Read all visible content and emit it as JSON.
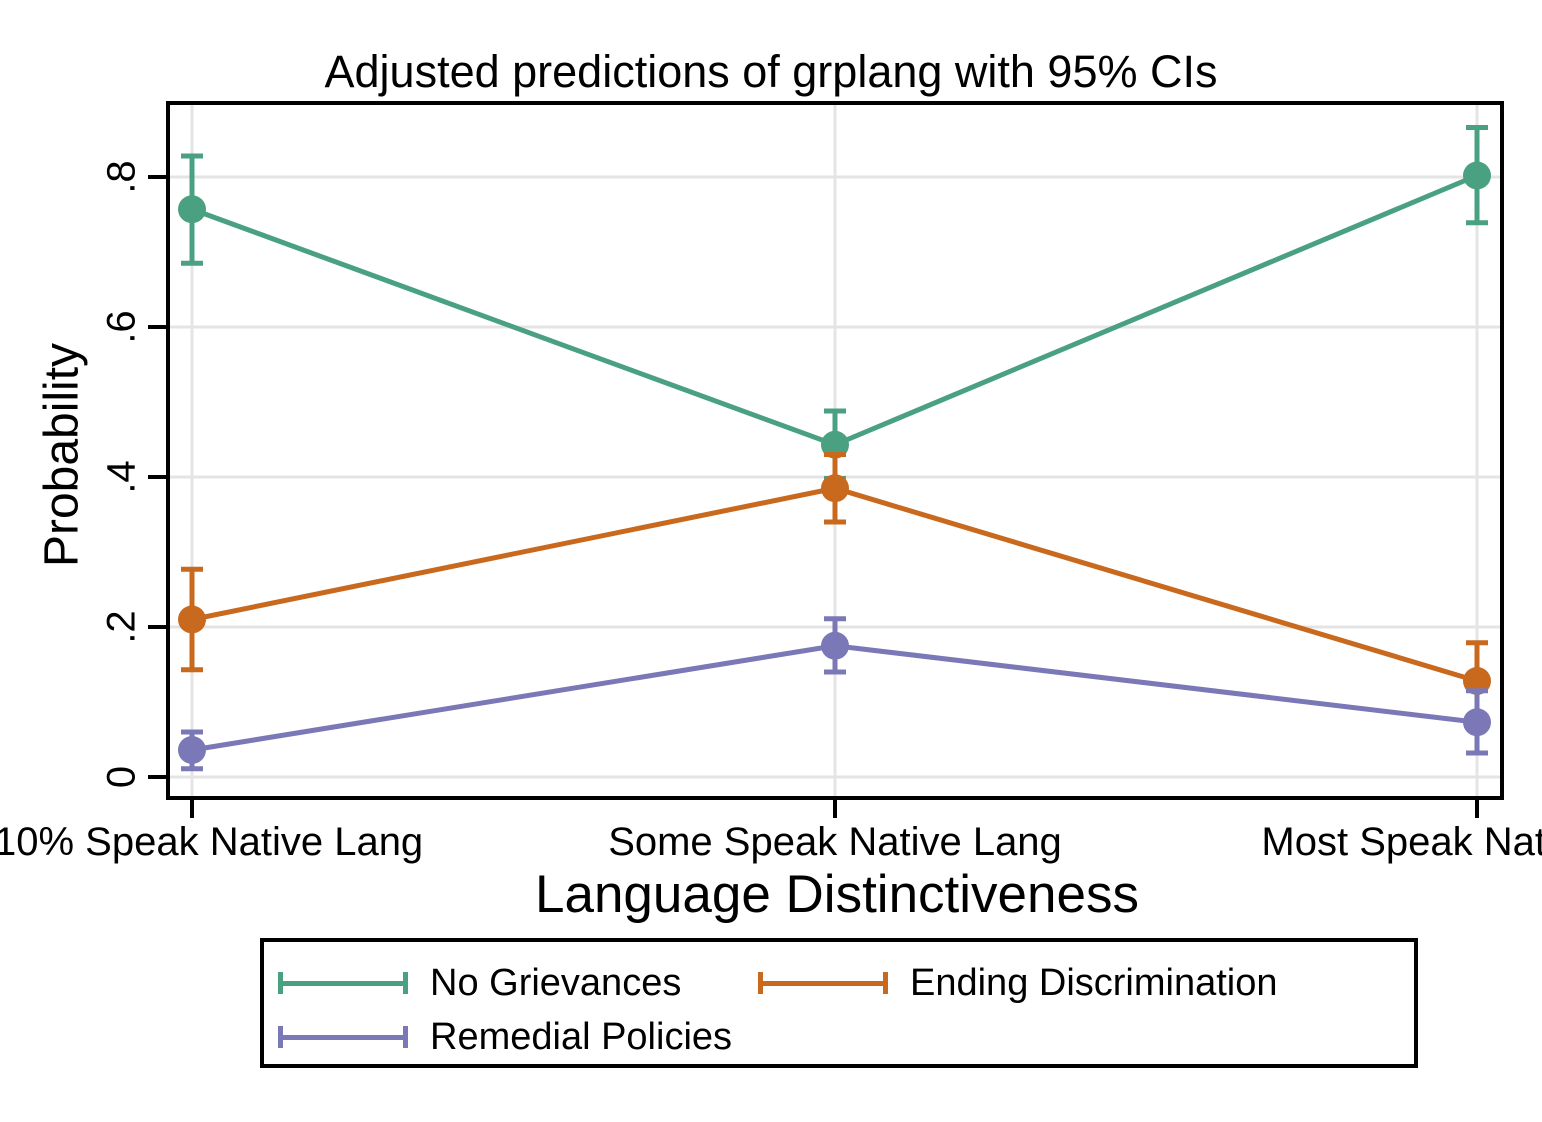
{
  "chart_data": {
    "type": "line",
    "title": "Adjusted predictions of grplang with 95% CIs",
    "xlabel": "Language Distinctiveness",
    "ylabel": "Probability",
    "ylim": [
      0,
      0.9
    ],
    "grid": true,
    "error_bars": "95% CIs",
    "legend_position": "bottom",
    "yticks": {
      "values": [
        0,
        0.2,
        0.4,
        0.6,
        0.8
      ],
      "labels": [
        "0",
        ".2",
        ".4",
        ".6",
        ".8"
      ]
    },
    "categories": [
      "10% Speak Native Lang",
      "Some Speak Native Lang",
      "Most Speak Nat"
    ],
    "series": [
      {
        "name": "No Grievances",
        "color": "#4AA181",
        "values": [
          0.757,
          0.443,
          0.802
        ],
        "ci_low": [
          0.685,
          0.398,
          0.739
        ],
        "ci_high": [
          0.828,
          0.488,
          0.866
        ]
      },
      {
        "name": "Ending Discrimination",
        "color": "#C9691E",
        "values": [
          0.21,
          0.385,
          0.128
        ],
        "ci_low": [
          0.143,
          0.34,
          0.078
        ],
        "ci_high": [
          0.277,
          0.43,
          0.179
        ]
      },
      {
        "name": "Remedial Policies",
        "color": "#7A78B6",
        "values": [
          0.036,
          0.175,
          0.073
        ],
        "ci_low": [
          0.011,
          0.14,
          0.032
        ],
        "ci_high": [
          0.06,
          0.211,
          0.115
        ]
      }
    ]
  },
  "legend": {
    "items": [
      {
        "label": "No Grievances",
        "color": "#4AA181"
      },
      {
        "label": "Ending Discrimination",
        "color": "#C9691E"
      },
      {
        "label": "Remedial Policies",
        "color": "#7A78B6"
      }
    ]
  }
}
